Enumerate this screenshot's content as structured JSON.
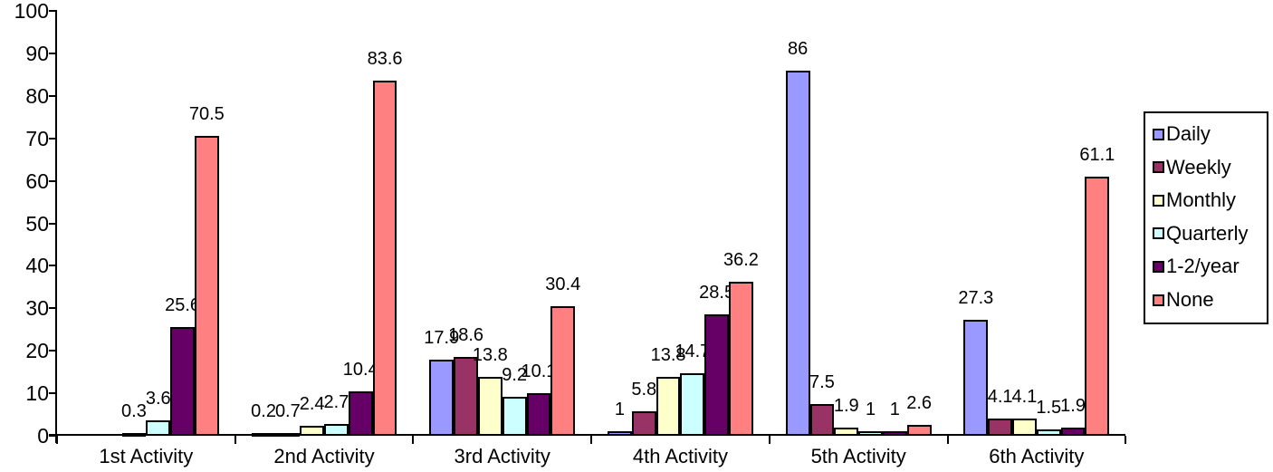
{
  "chart_data": {
    "type": "bar",
    "title": "",
    "xlabel": "",
    "ylabel": "",
    "categories": [
      "1st Activity",
      "2nd Activity",
      "3rd Activity",
      "4th Activity",
      "5th Activity",
      "6th Activity"
    ],
    "series": [
      {
        "name": "Daily",
        "color": "#9999FF",
        "values": [
          null,
          0.2,
          17.9,
          1,
          86,
          27.3
        ]
      },
      {
        "name": "Weekly",
        "color": "#993366",
        "values": [
          null,
          0.7,
          18.6,
          5.8,
          7.5,
          4.1
        ]
      },
      {
        "name": "Monthly",
        "color": "#FFFFCC",
        "values": [
          0.3,
          2.4,
          13.8,
          13.8,
          1.9,
          4.1
        ]
      },
      {
        "name": "Quarterly",
        "color": "#CCFFFF",
        "values": [
          3.6,
          2.7,
          9.2,
          14.7,
          1,
          1.5
        ]
      },
      {
        "name": "1-2/year",
        "color": "#660066",
        "values": [
          25.6,
          10.4,
          10.1,
          28.5,
          1,
          1.9
        ]
      },
      {
        "name": "None",
        "color": "#FF8080",
        "values": [
          70.5,
          83.6,
          30.4,
          36.2,
          2.6,
          61.1
        ]
      }
    ],
    "y_ticks": [
      0,
      10,
      20,
      30,
      40,
      50,
      60,
      70,
      80,
      90,
      100
    ],
    "ylim": [
      0,
      100
    ],
    "grid": false,
    "data_labels": true,
    "legend_position": "right",
    "bar_outline_color": "#000000",
    "axis_color": "#000000",
    "background_color": "#FFFFFF"
  }
}
